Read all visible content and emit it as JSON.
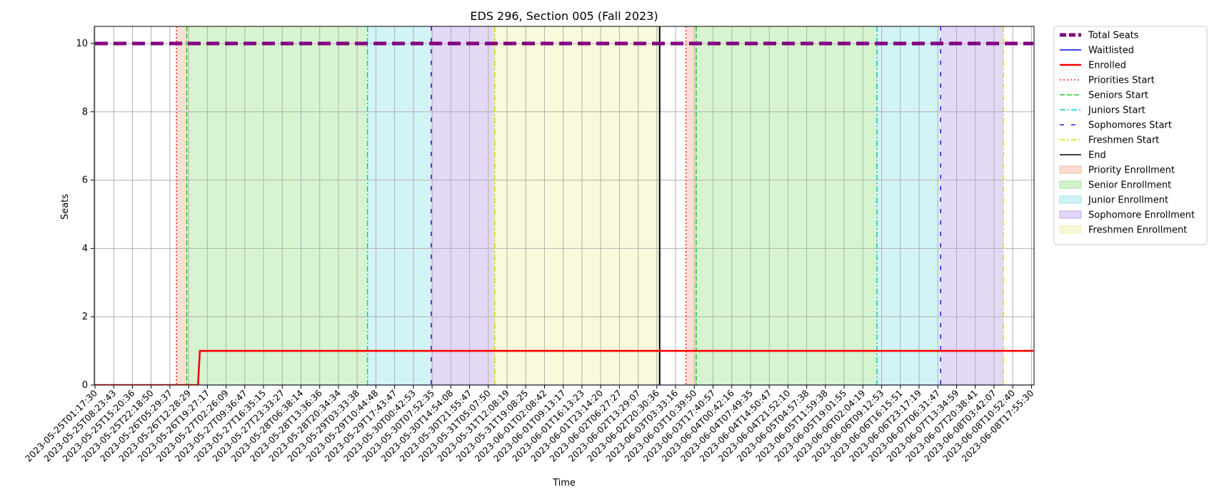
{
  "chart_data": {
    "type": "line",
    "title": "EDS 296, Section 005 (Fall 2023)",
    "xlabel": "Time",
    "ylabel": "Seats",
    "ylim": [
      0,
      10.5
    ],
    "yticks": [
      0,
      2,
      4,
      6,
      8,
      10
    ],
    "grid": true,
    "legend_position": "outside-right",
    "x_categories": [
      "2023-05-25T01:17:30",
      "2023-05-25T08:23:43",
      "2023-05-25T15:20:36",
      "2023-05-25T22:18:50",
      "2023-05-26T05:29:37",
      "2023-05-26T12:28:29",
      "2023-05-26T19:27:17",
      "2023-05-27T02:26:09",
      "2023-05-27T09:36:47",
      "2023-05-27T16:35:15",
      "2023-05-27T23:33:27",
      "2023-05-28T06:38:14",
      "2023-05-28T13:36:36",
      "2023-05-28T20:34:34",
      "2023-05-29T03:33:38",
      "2023-05-29T10:44:48",
      "2023-05-29T17:43:47",
      "2023-05-30T00:42:53",
      "2023-05-30T07:52:35",
      "2023-05-30T14:54:08",
      "2023-05-30T21:55:47",
      "2023-05-31T05:07:50",
      "2023-05-31T12:08:19",
      "2023-05-31T19:08:25",
      "2023-06-01T02:08:42",
      "2023-06-01T09:13:17",
      "2023-06-01T16:13:23",
      "2023-06-01T23:14:20",
      "2023-06-02T06:27:27",
      "2023-06-02T13:29:07",
      "2023-06-02T20:30:36",
      "2023-06-03T03:33:16",
      "2023-06-03T10:39:50",
      "2023-06-03T17:40:57",
      "2023-06-04T00:42:16",
      "2023-06-04T07:49:35",
      "2023-06-04T14:50:47",
      "2023-06-04T21:52:10",
      "2023-06-05T04:57:38",
      "2023-06-05T11:59:38",
      "2023-06-05T19:01:55",
      "2023-06-06T02:04:19",
      "2023-06-06T09:12:53",
      "2023-06-06T16:15:51",
      "2023-06-06T23:17:19",
      "2023-06-07T06:31:47",
      "2023-06-07T13:34:59",
      "2023-06-07T20:38:41",
      "2023-06-08T03:42:07",
      "2023-06-08T10:52:40",
      "2023-06-08T17:55:30"
    ],
    "series": [
      {
        "name": "Total Seats",
        "color": "#800080",
        "style": "dashed-thick",
        "points": [
          [
            0,
            10
          ],
          [
            50.1,
            10
          ]
        ]
      },
      {
        "name": "Waitlisted",
        "color": "#0000ff",
        "style": "solid",
        "points": [
          [
            0,
            0
          ],
          [
            50.1,
            0
          ]
        ]
      },
      {
        "name": "Enrolled",
        "color": "#ff0000",
        "style": "solid-thick",
        "points": [
          [
            0,
            0
          ],
          [
            5.5,
            0
          ],
          [
            5.6,
            1
          ],
          [
            50.1,
            1
          ]
        ]
      }
    ],
    "vlines": [
      {
        "name": "Priorities Start",
        "color": "#ff2020",
        "style": "dotted",
        "x": [
          4.35,
          31.55
        ]
      },
      {
        "name": "Seniors Start",
        "color": "#22cc22",
        "style": "dashed",
        "x": [
          4.9,
          32.1
        ]
      },
      {
        "name": "Juniors Start",
        "color": "#00cccc",
        "style": "dashdot",
        "x": [
          14.55,
          41.75
        ]
      },
      {
        "name": "Sophomores Start",
        "color": "#5500dd",
        "style": "loosedash",
        "x": [
          17.95,
          45.15
        ]
      },
      {
        "name": "Freshmen Start",
        "color": "#dddd00",
        "style": "dashdot",
        "x": [
          21.35,
          48.5
        ]
      },
      {
        "name": "End",
        "color": "#000000",
        "style": "solid",
        "x": [
          30.15
        ]
      }
    ],
    "spans": [
      {
        "name": "Priority Enrollment",
        "color": "#f4b9a0",
        "ranges": [
          [
            4.35,
            4.9
          ],
          [
            31.55,
            32.1
          ]
        ]
      },
      {
        "name": "Senior Enrollment",
        "color": "#a6e69a",
        "ranges": [
          [
            4.9,
            14.55
          ],
          [
            32.1,
            41.75
          ]
        ]
      },
      {
        "name": "Junior Enrollment",
        "color": "#9ee6ec",
        "ranges": [
          [
            14.55,
            17.95
          ],
          [
            41.75,
            45.15
          ]
        ]
      },
      {
        "name": "Sophomore Enrollment",
        "color": "#c3a9ed",
        "ranges": [
          [
            17.95,
            21.35
          ],
          [
            45.15,
            48.5
          ]
        ]
      },
      {
        "name": "Freshmen Enrollment",
        "color": "#f1f1b0",
        "ranges": [
          [
            21.35,
            30.15
          ]
        ]
      }
    ],
    "legend": [
      "Total Seats",
      "Waitlisted",
      "Enrolled",
      "Priorities Start",
      "Seniors Start",
      "Juniors Start",
      "Sophomores Start",
      "Freshmen Start",
      "End",
      "Priority Enrollment",
      "Senior Enrollment",
      "Junior Enrollment",
      "Sophomore Enrollment",
      "Freshmen Enrollment"
    ]
  }
}
